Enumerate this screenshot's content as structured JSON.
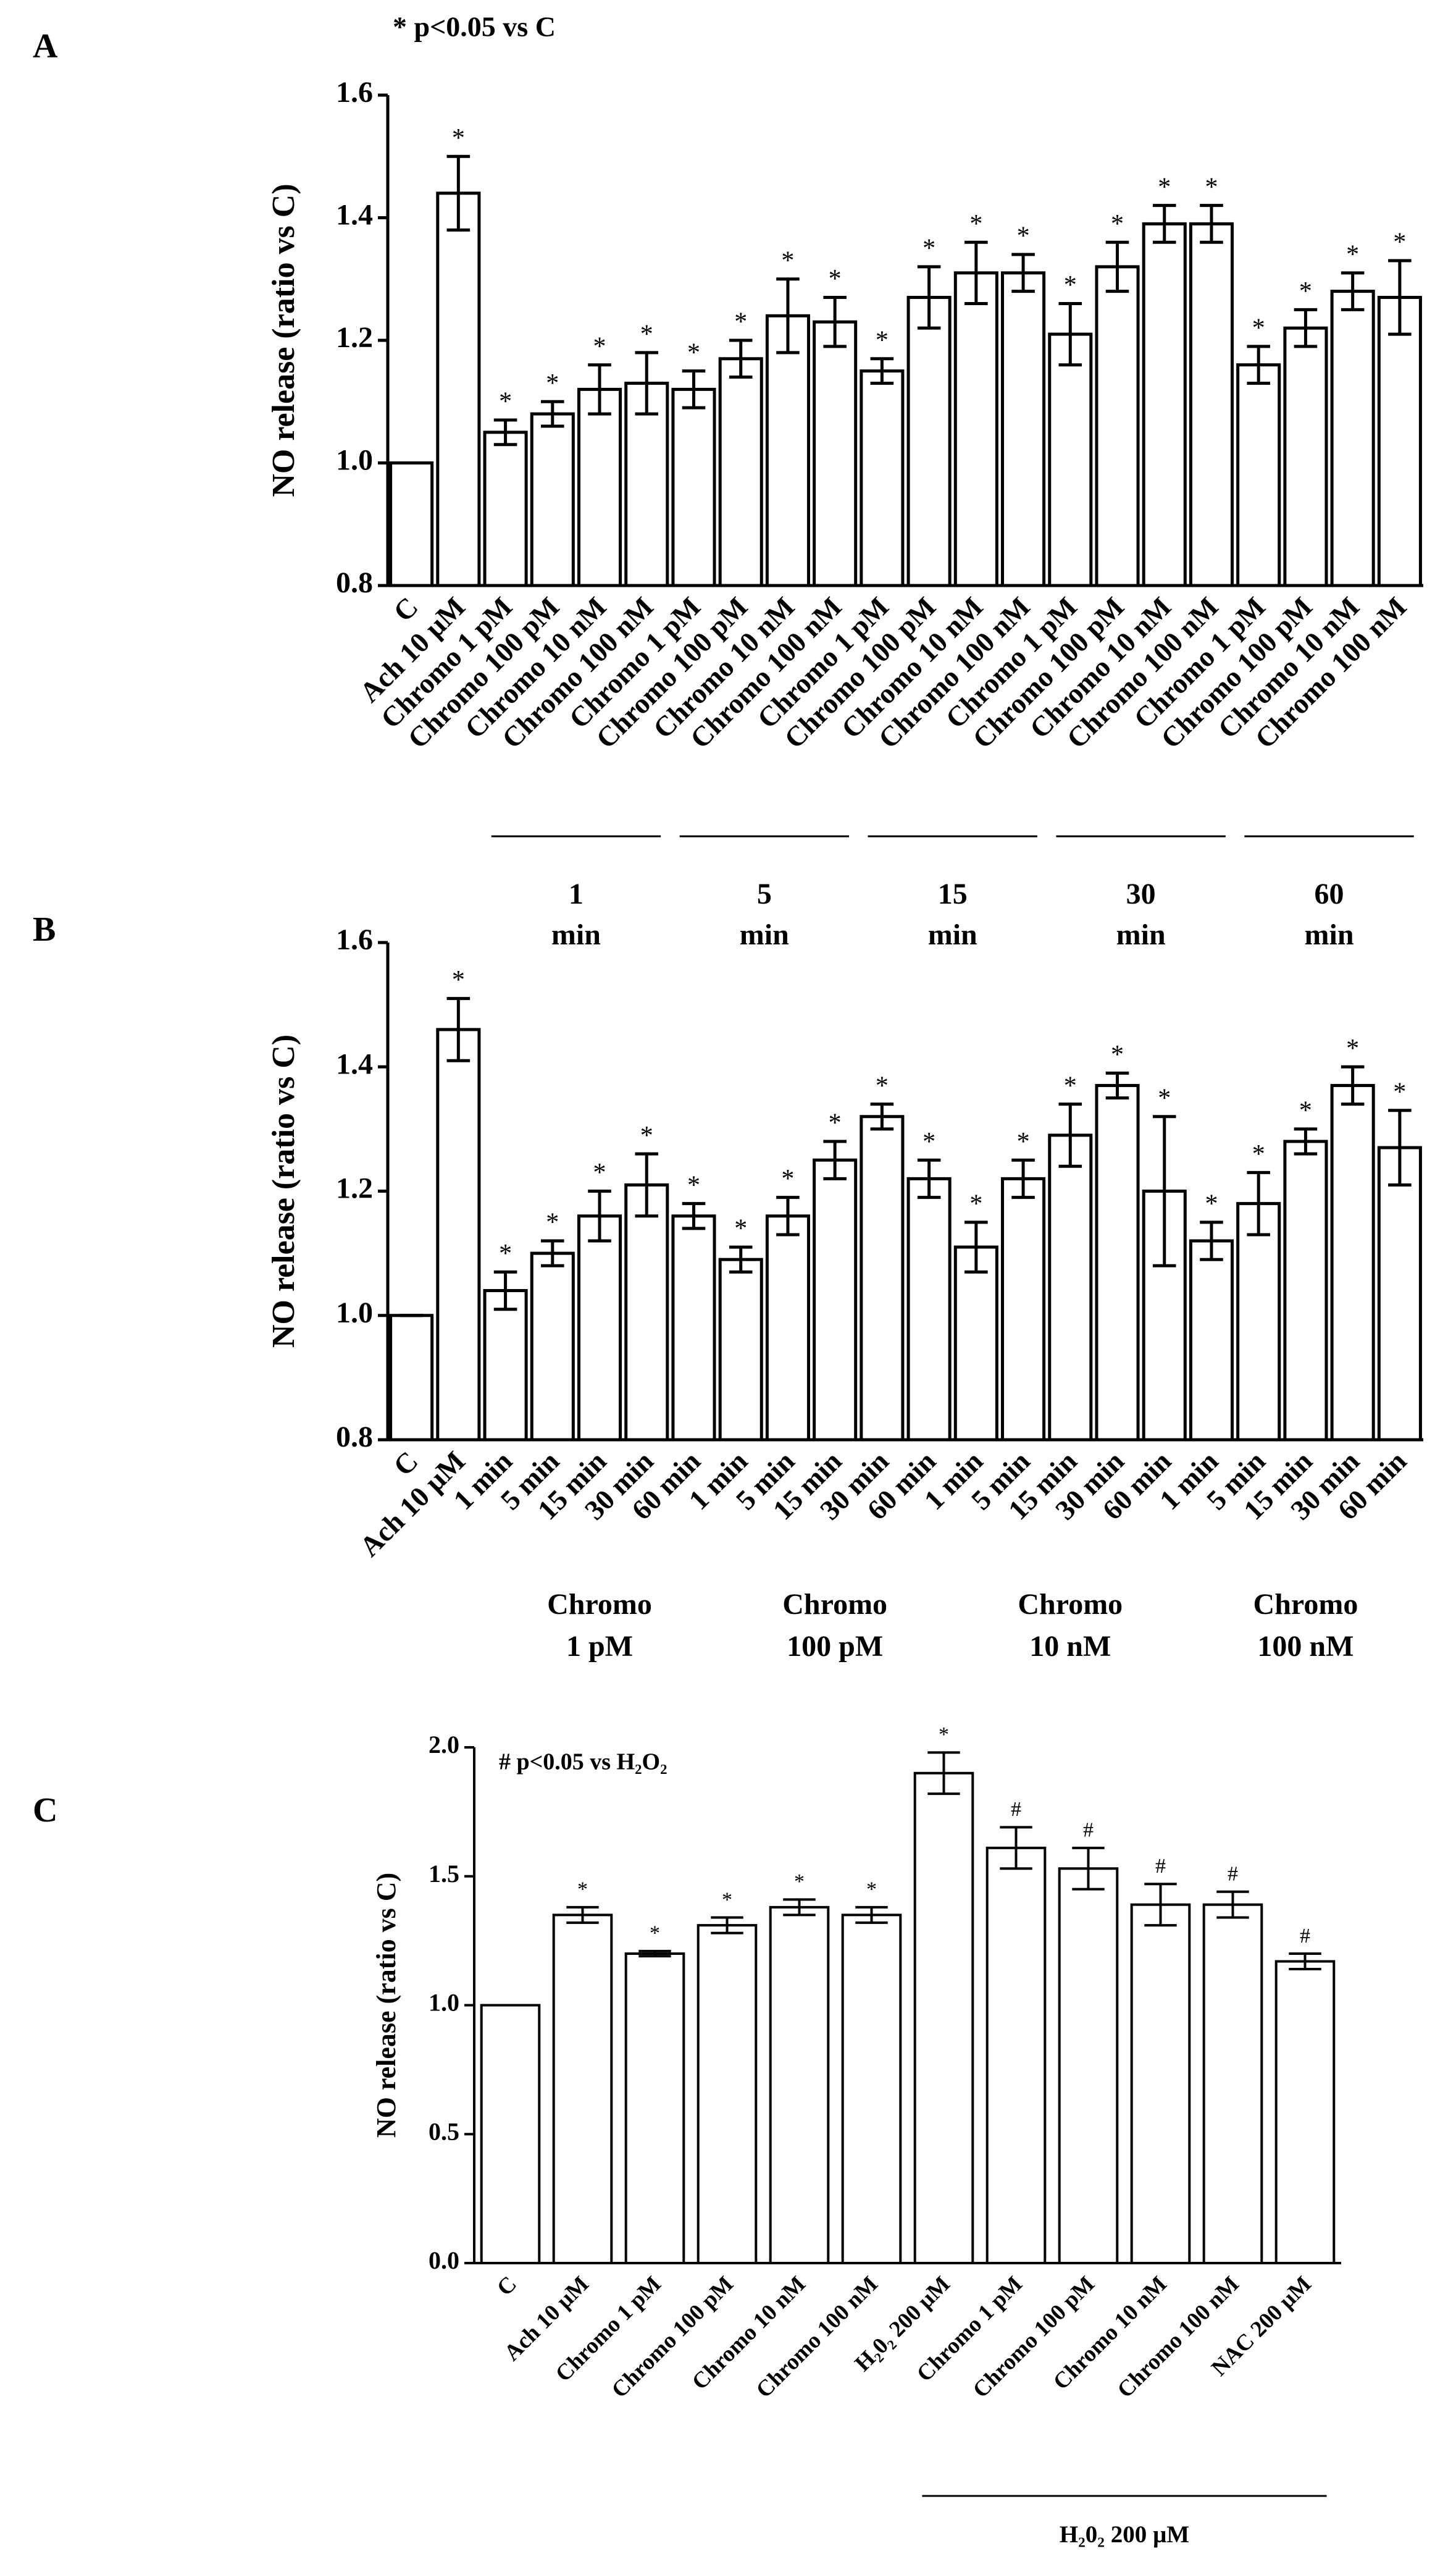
{
  "chart_data": [
    {
      "type": "bar",
      "panel": "A",
      "note": "* p<0.05 vs C",
      "ylabel": "NO release (ratio vs C)",
      "categories": [
        "C",
        "Ach 10 µM",
        "Chromo 1 pM",
        "Chromo 100 pM",
        "Chromo 10 nM",
        "Chromo 100 nM",
        "Chromo 1 pM",
        "Chromo 100 pM",
        "Chromo 10 nM",
        "Chromo 100 nM",
        "Chromo 1 pM",
        "Chromo 100 pM",
        "Chromo 10 nM",
        "Chromo 100 nM",
        "Chromo 1 pM",
        "Chromo 100 pM",
        "Chromo 10 nM",
        "Chromo 100 nM",
        "Chromo 1 pM",
        "Chromo 100 pM",
        "Chromo 10 nM",
        "Chromo 100 nM"
      ],
      "values": [
        1.0,
        1.44,
        1.05,
        1.08,
        1.12,
        1.13,
        1.12,
        1.17,
        1.24,
        1.23,
        1.15,
        1.27,
        1.31,
        1.31,
        1.21,
        1.32,
        1.39,
        1.39,
        1.16,
        1.22,
        1.28,
        1.27
      ],
      "errors": [
        0.0,
        0.06,
        0.02,
        0.02,
        0.04,
        0.05,
        0.03,
        0.03,
        0.06,
        0.04,
        0.02,
        0.05,
        0.05,
        0.03,
        0.05,
        0.04,
        0.03,
        0.03,
        0.03,
        0.03,
        0.03,
        0.06
      ],
      "markers": [
        null,
        "*",
        "*",
        "*",
        "*",
        "*",
        "*",
        "*",
        "*",
        "*",
        "*",
        "*",
        "*",
        "*",
        "*",
        "*",
        "*",
        "*",
        "*",
        "*",
        "*",
        "*"
      ],
      "groups": [
        [
          "1",
          "min"
        ],
        [
          "5",
          "min"
        ],
        [
          "15",
          "min"
        ],
        [
          "30",
          "min"
        ],
        [
          "60",
          "min"
        ]
      ],
      "ylim": [
        0.8,
        1.6
      ],
      "yticks": [
        0.8,
        {
          "value": 1,
          "label": "1.0"
        },
        1.2,
        1.4,
        1.6
      ],
      "color": "#ffffff"
    },
    {
      "type": "bar",
      "panel": "B",
      "ylabel": "NO release (ratio vs C)",
      "categories": [
        "C",
        "Ach 10 µM",
        "1 min",
        "5 min",
        "15 min",
        "30 min",
        "60 min",
        "1 min",
        "5 min",
        "15 min",
        "30 min",
        "60 min",
        "1 min",
        "5 min",
        "15 min",
        "30 min",
        "60 min",
        "1 min",
        "5 min",
        "15 min",
        "30 min",
        "60 min"
      ],
      "values": [
        1.0,
        1.46,
        1.04,
        1.1,
        1.16,
        1.21,
        1.16,
        1.09,
        1.16,
        1.25,
        1.32,
        1.22,
        1.11,
        1.22,
        1.29,
        1.37,
        1.2,
        1.12,
        1.18,
        1.28,
        1.37,
        1.27
      ],
      "errors": [
        0.0,
        0.05,
        0.03,
        0.02,
        0.04,
        0.05,
        0.02,
        0.02,
        0.03,
        0.03,
        0.02,
        0.03,
        0.04,
        0.03,
        0.05,
        0.02,
        0.12,
        0.03,
        0.05,
        0.02,
        0.03,
        0.06
      ],
      "markers": [
        null,
        "*",
        "*",
        "*",
        "*",
        "*",
        "*",
        "*",
        "*",
        "*",
        "*",
        "*",
        "*",
        "*",
        "*",
        "*",
        "*",
        "*",
        "*",
        "*",
        "*",
        "*"
      ],
      "groups": [
        [
          "Chromo",
          "1 pM"
        ],
        [
          "Chromo",
          "100 pM"
        ],
        [
          "Chromo",
          "10 nM"
        ],
        [
          "Chromo",
          "100 nM"
        ]
      ],
      "ylim": [
        0.8,
        1.6
      ],
      "yticks": [
        0.8,
        {
          "value": 1,
          "label": "1.0"
        },
        1.2,
        1.4,
        1.6
      ],
      "color": "#ffffff"
    },
    {
      "type": "bar",
      "panel": "C",
      "note": "# p<0.05 vs H₂O₂",
      "ylabel": "NO release (ratio vs C)",
      "categories": [
        "C",
        "Ach 10 µM",
        "Chromo 1 pM",
        "Chromo 100 pM",
        "Chromo 10 nM",
        "Chromo 100 nM",
        "H₂0₂ 200 µM",
        "Chromo 1 pM",
        "Chromo 100 pM",
        "Chromo 10 nM",
        "Chromo 100 nM",
        "NAC 200 µM"
      ],
      "values": [
        1.0,
        1.35,
        1.2,
        1.31,
        1.38,
        1.35,
        1.9,
        1.61,
        1.53,
        1.39,
        1.39,
        1.17
      ],
      "errors": [
        0.0,
        0.03,
        0.01,
        0.03,
        0.03,
        0.03,
        0.08,
        0.08,
        0.08,
        0.08,
        0.05,
        0.03
      ],
      "markers": [
        null,
        "*",
        "*",
        "*",
        "*",
        "*",
        "*",
        "#",
        "#",
        "#",
        "#",
        "#"
      ],
      "groups": [
        [
          "H₂0₂ 200 µM"
        ]
      ],
      "ylim": [
        0,
        2
      ],
      "yticks": [
        {
          "value": 0,
          "label": "0.0"
        },
        0.5,
        {
          "value": 1,
          "label": "1.0"
        },
        1.5,
        {
          "value": 2,
          "label": "2.0"
        }
      ],
      "color": "#ffffff"
    }
  ]
}
